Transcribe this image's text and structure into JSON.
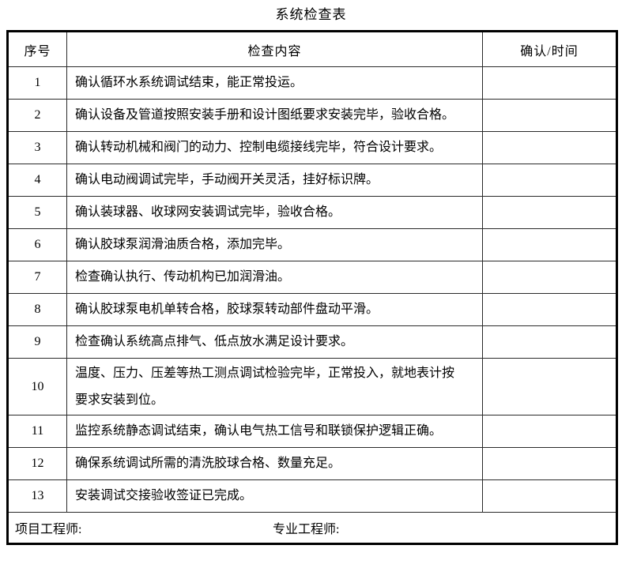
{
  "title": "系统检查表",
  "table": {
    "headers": [
      "序号",
      "检查内容",
      "确认/时间"
    ],
    "rows": [
      {
        "no": "1",
        "content": "确认循环水系统调试结束，能正常投运。",
        "confirm": ""
      },
      {
        "no": "2",
        "content": "确认设备及管道按照安装手册和设计图纸要求安装完毕，验收合格。",
        "confirm": ""
      },
      {
        "no": "3",
        "content": "确认转动机械和阀门的动力、控制电缆接线完毕，符合设计要求。",
        "confirm": ""
      },
      {
        "no": "4",
        "content": "确认电动阀调试完毕，手动阀开关灵活，挂好标识牌。",
        "confirm": ""
      },
      {
        "no": "5",
        "content": "确认装球器、收球网安装调试完毕，验收合格。",
        "confirm": ""
      },
      {
        "no": "6",
        "content": "确认胶球泵润滑油质合格，添加完毕。",
        "confirm": ""
      },
      {
        "no": "7",
        "content": "检查确认执行、传动机构已加润滑油。",
        "confirm": ""
      },
      {
        "no": "8",
        "content": "确认胶球泵电机单转合格，胶球泵转动部件盘动平滑。",
        "confirm": ""
      },
      {
        "no": "9",
        "content": "检查确认系统高点排气、低点放水满足设计要求。",
        "confirm": ""
      },
      {
        "no": "10",
        "content": "温度、压力、压差等热工测点调试检验完毕，正常投入，就地表计按要求安装到位。",
        "confirm": ""
      },
      {
        "no": "11",
        "content": "监控系统静态调试结束，确认电气热工信号和联锁保护逻辑正确。",
        "confirm": ""
      },
      {
        "no": "12",
        "content": "确保系统调试所需的清洗胶球合格、数量充足。",
        "confirm": ""
      },
      {
        "no": "13",
        "content": "安装调试交接验收签证已完成。",
        "confirm": ""
      }
    ],
    "footer": {
      "project_engineer_label": "项目工程师:",
      "specialty_engineer_label": "专业工程师:"
    }
  }
}
